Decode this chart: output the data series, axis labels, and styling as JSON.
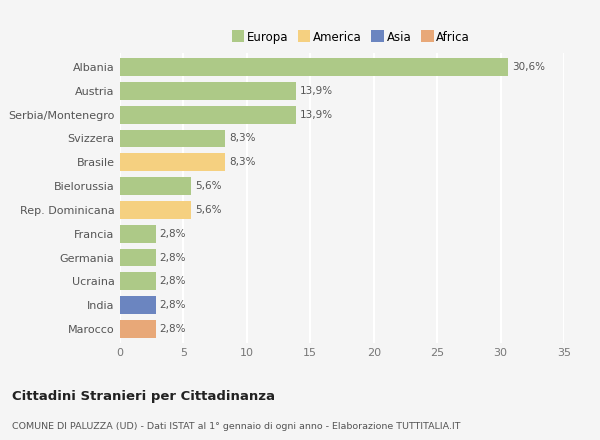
{
  "countries": [
    "Albania",
    "Austria",
    "Serbia/Montenegro",
    "Svizzera",
    "Brasile",
    "Bielorussia",
    "Rep. Dominicana",
    "Francia",
    "Germania",
    "Ucraina",
    "India",
    "Marocco"
  ],
  "values": [
    30.6,
    13.9,
    13.9,
    8.3,
    8.3,
    5.6,
    5.6,
    2.8,
    2.8,
    2.8,
    2.8,
    2.8
  ],
  "labels": [
    "30,6%",
    "13,9%",
    "13,9%",
    "8,3%",
    "8,3%",
    "5,6%",
    "5,6%",
    "2,8%",
    "2,8%",
    "2,8%",
    "2,8%",
    "2,8%"
  ],
  "colors": [
    "#adc987",
    "#adc987",
    "#adc987",
    "#adc987",
    "#f5d080",
    "#adc987",
    "#f5d080",
    "#adc987",
    "#adc987",
    "#adc987",
    "#6b85c0",
    "#e8a878"
  ],
  "continent_colors": {
    "Europa": "#adc987",
    "America": "#f5d080",
    "Asia": "#6b85c0",
    "Africa": "#e8a878"
  },
  "legend_labels": [
    "Europa",
    "America",
    "Asia",
    "Africa"
  ],
  "xlim": [
    0,
    35
  ],
  "xticks": [
    0,
    5,
    10,
    15,
    20,
    25,
    30,
    35
  ],
  "title": "Cittadini Stranieri per Cittadinanza",
  "subtitle": "COMUNE DI PALUZZA (UD) - Dati ISTAT al 1° gennaio di ogni anno - Elaborazione TUTTITALIA.IT",
  "bg_color": "#f5f5f5",
  "grid_color": "#ffffff",
  "bar_height": 0.75
}
